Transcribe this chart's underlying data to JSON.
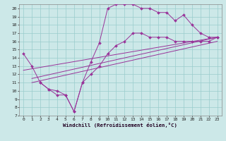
{
  "title": "",
  "xlabel": "Windchill (Refroidissement éolien,°C)",
  "bg_color": "#cce8e8",
  "line_color": "#993399",
  "grid_color": "#99cccc",
  "xlim": [
    -0.5,
    23.5
  ],
  "ylim": [
    7,
    20.5
  ],
  "xticks": [
    0,
    1,
    2,
    3,
    4,
    5,
    6,
    7,
    8,
    9,
    10,
    11,
    12,
    13,
    14,
    15,
    16,
    17,
    18,
    19,
    20,
    21,
    22,
    23
  ],
  "yticks": [
    7,
    8,
    9,
    10,
    11,
    12,
    13,
    14,
    15,
    16,
    17,
    18,
    19,
    20
  ],
  "line1_x": [
    0,
    1,
    2,
    3,
    4,
    5,
    6,
    7,
    8,
    9,
    10,
    11,
    12,
    13,
    14,
    15,
    16,
    17,
    18,
    19,
    20,
    21,
    22,
    23
  ],
  "line1_y": [
    14.5,
    13.0,
    11.0,
    10.2,
    9.5,
    9.5,
    7.5,
    11.0,
    13.5,
    15.8,
    20.0,
    20.5,
    20.5,
    20.5,
    20.0,
    20.0,
    19.5,
    19.5,
    18.5,
    19.2,
    18.0,
    17.0,
    16.5,
    16.5
  ],
  "line2_x": [
    2,
    3,
    4,
    5,
    6,
    7,
    8,
    9,
    10,
    11,
    12,
    13,
    14,
    15,
    16,
    17,
    18,
    19,
    20,
    21,
    22,
    23
  ],
  "line2_y": [
    11.0,
    10.2,
    10.0,
    9.5,
    7.5,
    11.0,
    12.0,
    13.0,
    14.5,
    15.5,
    16.0,
    17.0,
    17.0,
    16.5,
    16.5,
    16.5,
    16.0,
    16.0,
    16.0,
    16.0,
    16.0,
    16.5
  ],
  "line3_x": [
    1,
    23
  ],
  "line3_y": [
    11.5,
    16.5
  ],
  "line4_x": [
    1,
    23
  ],
  "line4_y": [
    11.0,
    16.0
  ],
  "line5_x": [
    0,
    23
  ],
  "line5_y": [
    12.5,
    16.5
  ]
}
